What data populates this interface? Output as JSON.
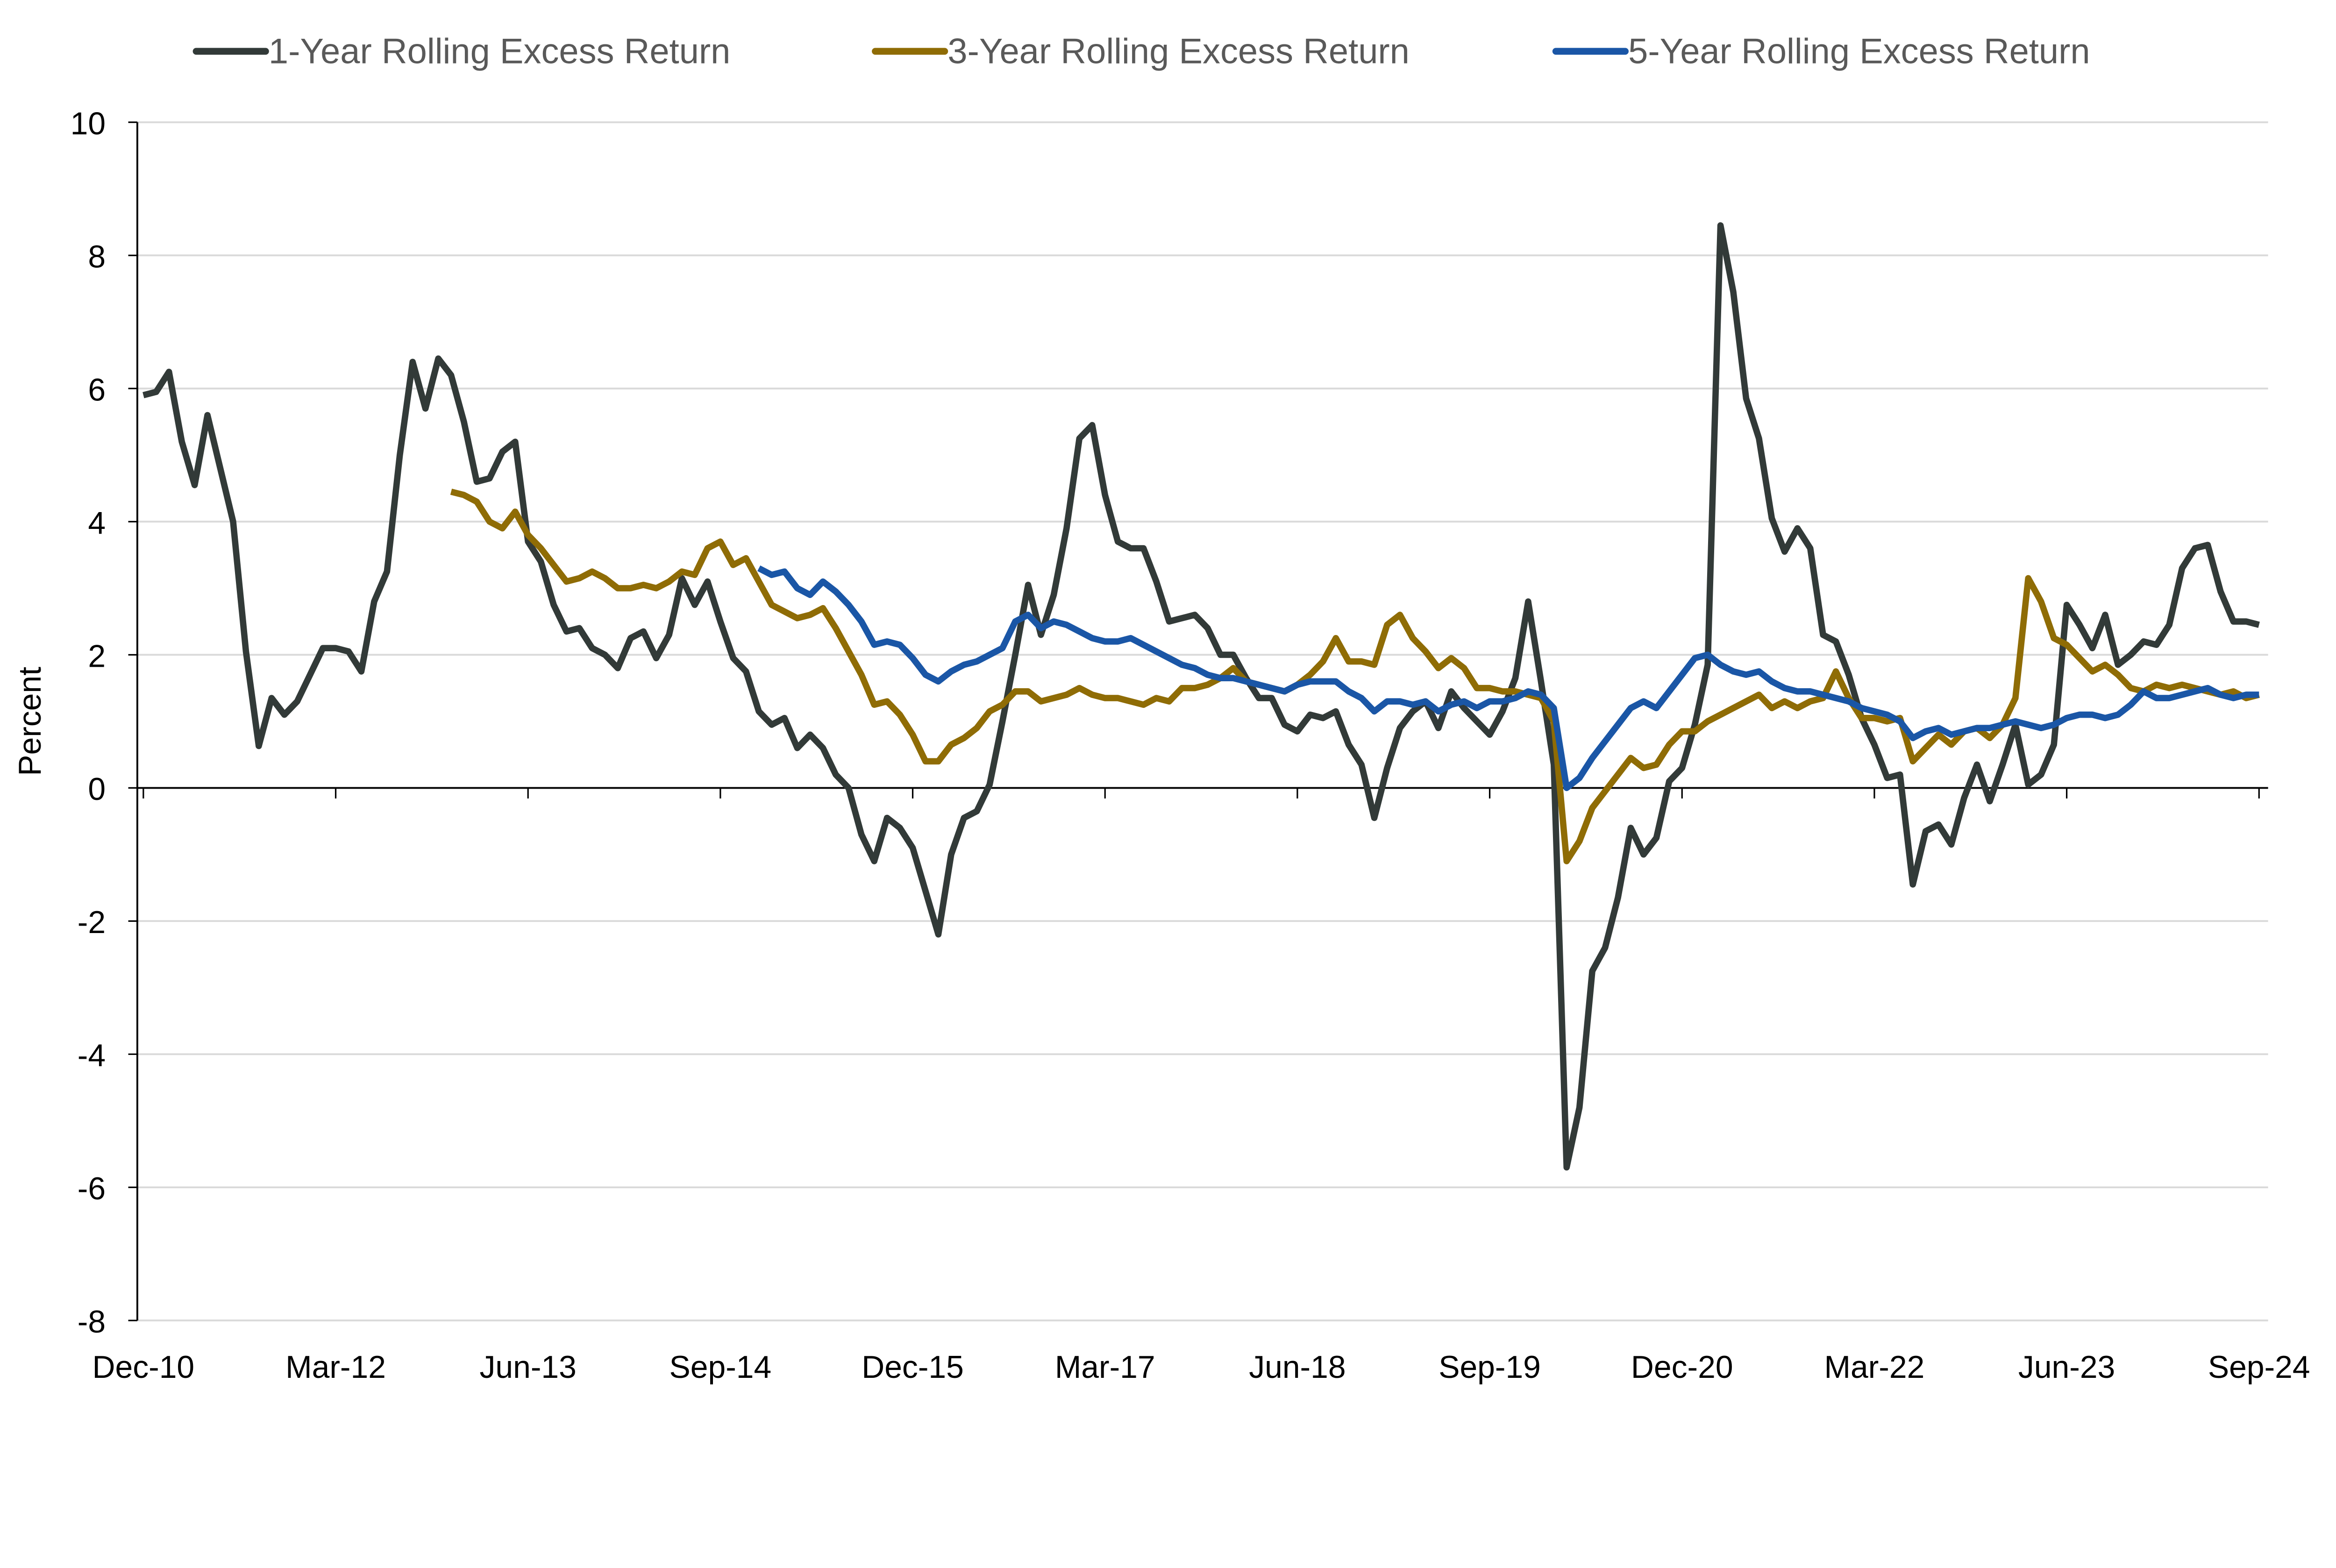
{
  "chart_data": {
    "type": "line",
    "ylabel": "Percent",
    "xlabel": "",
    "ylim": [
      -8,
      10
    ],
    "yticks": [
      -8,
      -6,
      -4,
      -2,
      0,
      2,
      4,
      6,
      8,
      10
    ],
    "ytick_labels": [
      "-8",
      "-6",
      "-4",
      "-2",
      "0",
      "2",
      "4",
      "6",
      "8",
      "10"
    ],
    "xlim": [
      "2010-12",
      "2024-09"
    ],
    "xtick_labels": [
      "Dec-10",
      "Mar-12",
      "Jun-13",
      "Sep-14",
      "Dec-15",
      "Mar-17",
      "Jun-18",
      "Sep-19",
      "Dec-20",
      "Mar-22",
      "Jun-23",
      "Sep-24"
    ],
    "xtick_dates": [
      "2010-12",
      "2012-03",
      "2013-06",
      "2014-09",
      "2015-12",
      "2017-03",
      "2018-06",
      "2019-09",
      "2020-12",
      "2022-03",
      "2023-06",
      "2024-09"
    ],
    "frequency": "monthly",
    "grid": "horizontal",
    "legend": "top",
    "series": [
      {
        "name": "1-Year Rolling Excess Return",
        "color": "#323a38",
        "start": "2010-12",
        "values": [
          5.9,
          5.95,
          6.25,
          5.2,
          4.55,
          5.6,
          4.8,
          4.0,
          2.05,
          0.63,
          1.35,
          1.1,
          1.3,
          1.7,
          2.1,
          2.1,
          2.05,
          1.75,
          2.8,
          3.25,
          5.0,
          6.4,
          5.7,
          6.45,
          6.2,
          5.5,
          4.6,
          4.65,
          5.05,
          5.2,
          3.7,
          3.4,
          2.75,
          2.35,
          2.4,
          2.1,
          2.0,
          1.8,
          2.25,
          2.35,
          1.95,
          2.3,
          3.15,
          2.75,
          3.1,
          2.5,
          1.95,
          1.75,
          1.15,
          0.95,
          1.05,
          0.6,
          0.8,
          0.6,
          0.2,
          0.0,
          -0.7,
          -1.1,
          -0.45,
          -0.6,
          -0.9,
          -1.55,
          -2.2,
          -1.0,
          -0.45,
          -0.35,
          0.05,
          1.0,
          2.0,
          3.05,
          2.3,
          2.9,
          3.9,
          5.25,
          5.45,
          4.4,
          3.7,
          3.6,
          3.6,
          3.1,
          2.5,
          2.55,
          2.6,
          2.4,
          2.0,
          2.0,
          1.65,
          1.35,
          1.35,
          0.95,
          0.85,
          1.1,
          1.05,
          1.15,
          0.65,
          0.35,
          -0.45,
          0.3,
          0.9,
          1.15,
          1.3,
          0.9,
          1.45,
          1.2,
          1.0,
          0.8,
          1.15,
          1.65,
          2.8,
          1.6,
          0.35,
          -5.7,
          -4.8,
          -2.75,
          -2.4,
          -1.65,
          -0.6,
          -1.0,
          -0.75,
          0.1,
          0.3,
          0.95,
          1.85,
          8.45,
          7.45,
          5.85,
          5.25,
          4.05,
          3.55,
          3.9,
          3.6,
          2.3,
          2.2,
          1.7,
          1.05,
          0.65,
          0.15,
          0.2,
          -1.45,
          -0.65,
          -0.55,
          -0.85,
          -0.15,
          0.35,
          -0.2,
          0.35,
          0.95,
          0.05,
          0.2,
          0.65,
          2.75,
          2.45,
          2.1,
          2.6,
          1.85,
          2.0,
          2.2,
          2.15,
          2.45,
          3.3,
          3.6,
          3.65,
          2.95,
          2.5,
          2.5,
          2.45
        ]
      },
      {
        "name": "3-Year Rolling Excess Return",
        "color": "#8f6c05",
        "start": "2012-12",
        "values": [
          4.45,
          4.4,
          4.3,
          4.0,
          3.9,
          4.15,
          3.8,
          3.6,
          3.35,
          3.1,
          3.15,
          3.25,
          3.15,
          3.0,
          3.0,
          3.05,
          3.0,
          3.1,
          3.25,
          3.2,
          3.6,
          3.7,
          3.35,
          3.45,
          3.1,
          2.75,
          2.65,
          2.55,
          2.6,
          2.7,
          2.4,
          2.05,
          1.7,
          1.25,
          1.3,
          1.1,
          0.8,
          0.4,
          0.4,
          0.65,
          0.75,
          0.9,
          1.15,
          1.25,
          1.45,
          1.45,
          1.3,
          1.35,
          1.4,
          1.5,
          1.4,
          1.35,
          1.35,
          1.3,
          1.25,
          1.35,
          1.3,
          1.5,
          1.5,
          1.55,
          1.65,
          1.8,
          1.6,
          1.55,
          1.5,
          1.45,
          1.55,
          1.7,
          1.9,
          2.25,
          1.9,
          1.9,
          1.85,
          2.45,
          2.6,
          2.25,
          2.05,
          1.8,
          1.95,
          1.8,
          1.5,
          1.5,
          1.45,
          1.45,
          1.4,
          1.35,
          1.0,
          -1.1,
          -0.8,
          -0.3,
          -0.05,
          0.2,
          0.45,
          0.3,
          0.35,
          0.65,
          0.85,
          0.85,
          1.0,
          1.1,
          1.2,
          1.3,
          1.4,
          1.2,
          1.3,
          1.2,
          1.3,
          1.35,
          1.75,
          1.35,
          1.05,
          1.05,
          1.0,
          1.05,
          0.4,
          0.6,
          0.8,
          0.65,
          0.85,
          0.9,
          0.75,
          0.95,
          1.35,
          3.15,
          2.8,
          2.25,
          2.15,
          1.95,
          1.75,
          1.85,
          1.7,
          1.5,
          1.45,
          1.55,
          1.5,
          1.55,
          1.5,
          1.45,
          1.4,
          1.45,
          1.35,
          1.4
        ]
      },
      {
        "name": "5-Year Rolling Excess Return",
        "color": "#1a56a6",
        "start": "2014-12",
        "values": [
          3.3,
          3.2,
          3.25,
          3.0,
          2.9,
          3.1,
          2.95,
          2.75,
          2.5,
          2.15,
          2.2,
          2.15,
          1.95,
          1.7,
          1.6,
          1.75,
          1.85,
          1.9,
          2.0,
          2.1,
          2.5,
          2.6,
          2.4,
          2.5,
          2.45,
          2.35,
          2.25,
          2.2,
          2.2,
          2.25,
          2.15,
          2.05,
          1.95,
          1.85,
          1.8,
          1.7,
          1.65,
          1.65,
          1.6,
          1.55,
          1.5,
          1.45,
          1.55,
          1.6,
          1.6,
          1.6,
          1.45,
          1.35,
          1.15,
          1.3,
          1.3,
          1.25,
          1.3,
          1.15,
          1.25,
          1.3,
          1.2,
          1.3,
          1.3,
          1.35,
          1.45,
          1.4,
          1.2,
          0.0,
          0.15,
          0.45,
          0.7,
          0.95,
          1.2,
          1.3,
          1.2,
          1.45,
          1.7,
          1.95,
          2.0,
          1.85,
          1.75,
          1.7,
          1.75,
          1.6,
          1.5,
          1.45,
          1.45,
          1.4,
          1.35,
          1.3,
          1.2,
          1.15,
          1.1,
          1.0,
          0.75,
          0.85,
          0.9,
          0.8,
          0.85,
          0.9,
          0.9,
          0.95,
          1.0,
          0.95,
          0.9,
          0.95,
          1.05,
          1.1,
          1.1,
          1.05,
          1.1,
          1.25,
          1.45,
          1.35,
          1.35,
          1.4,
          1.45,
          1.5,
          1.4,
          1.35,
          1.4,
          1.4
        ]
      }
    ]
  }
}
